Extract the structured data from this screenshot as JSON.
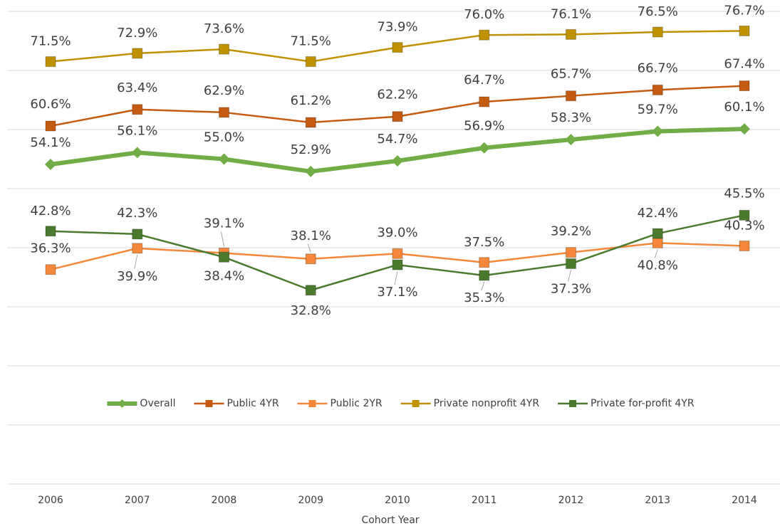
{
  "chart_data": {
    "type": "line",
    "x_label": "Cohort Year",
    "categories": [
      "2006",
      "2007",
      "2008",
      "2009",
      "2010",
      "2011",
      "2012",
      "2013",
      "2014"
    ],
    "ylim": [
      0,
      80
    ],
    "yticks": [
      0,
      10,
      20,
      30,
      40,
      50,
      60,
      70,
      80
    ],
    "grid": true,
    "legend": "center",
    "series": [
      {
        "name": "Overall",
        "color": "#70ad47",
        "marker": "diamond",
        "values": [
          54.1,
          56.1,
          55.0,
          52.9,
          54.7,
          56.9,
          58.3,
          59.7,
          60.1
        ],
        "value_labels": [
          "54.1%",
          "56.1%",
          "55.0%",
          "52.9%",
          "54.7%",
          "56.9%",
          "58.3%",
          "59.7%",
          "60.1%"
        ]
      },
      {
        "name": "Public 4YR",
        "color": "#c55a11",
        "marker": "square",
        "values": [
          60.6,
          63.4,
          62.9,
          61.2,
          62.2,
          64.7,
          65.7,
          66.7,
          67.4
        ],
        "value_labels": [
          "60.6%",
          "63.4%",
          "62.9%",
          "61.2%",
          "62.2%",
          "64.7%",
          "65.7%",
          "66.7%",
          "67.4%"
        ]
      },
      {
        "name": "Public 2YR",
        "color": "#f4873a",
        "marker": "square",
        "values": [
          36.3,
          39.9,
          39.1,
          38.1,
          39.0,
          37.5,
          39.2,
          40.8,
          40.3
        ],
        "value_labels": [
          "36.3%",
          "39.9%",
          "39.1%",
          "38.1%",
          "39.0%",
          "37.5%",
          "39.2%",
          "40.8%",
          "40.3%"
        ]
      },
      {
        "name": "Private nonprofit 4YR",
        "color": "#bf9000",
        "marker": "square",
        "values": [
          71.5,
          72.9,
          73.6,
          71.5,
          73.9,
          76.0,
          76.1,
          76.5,
          76.7
        ],
        "value_labels": [
          "71.5%",
          "72.9%",
          "73.6%",
          "71.5%",
          "73.9%",
          "76.0%",
          "76.1%",
          "76.5%",
          "76.7%"
        ]
      },
      {
        "name": "Private for-profit 4YR",
        "color": "#4a7a2e",
        "marker": "square",
        "values": [
          42.8,
          42.3,
          38.4,
          32.8,
          37.1,
          35.3,
          37.3,
          42.4,
          45.5
        ],
        "value_labels": [
          "42.8%",
          "42.3%",
          "38.4%",
          "32.8%",
          "37.1%",
          "35.3%",
          "37.3%",
          "42.4%",
          "45.5%"
        ]
      }
    ]
  }
}
